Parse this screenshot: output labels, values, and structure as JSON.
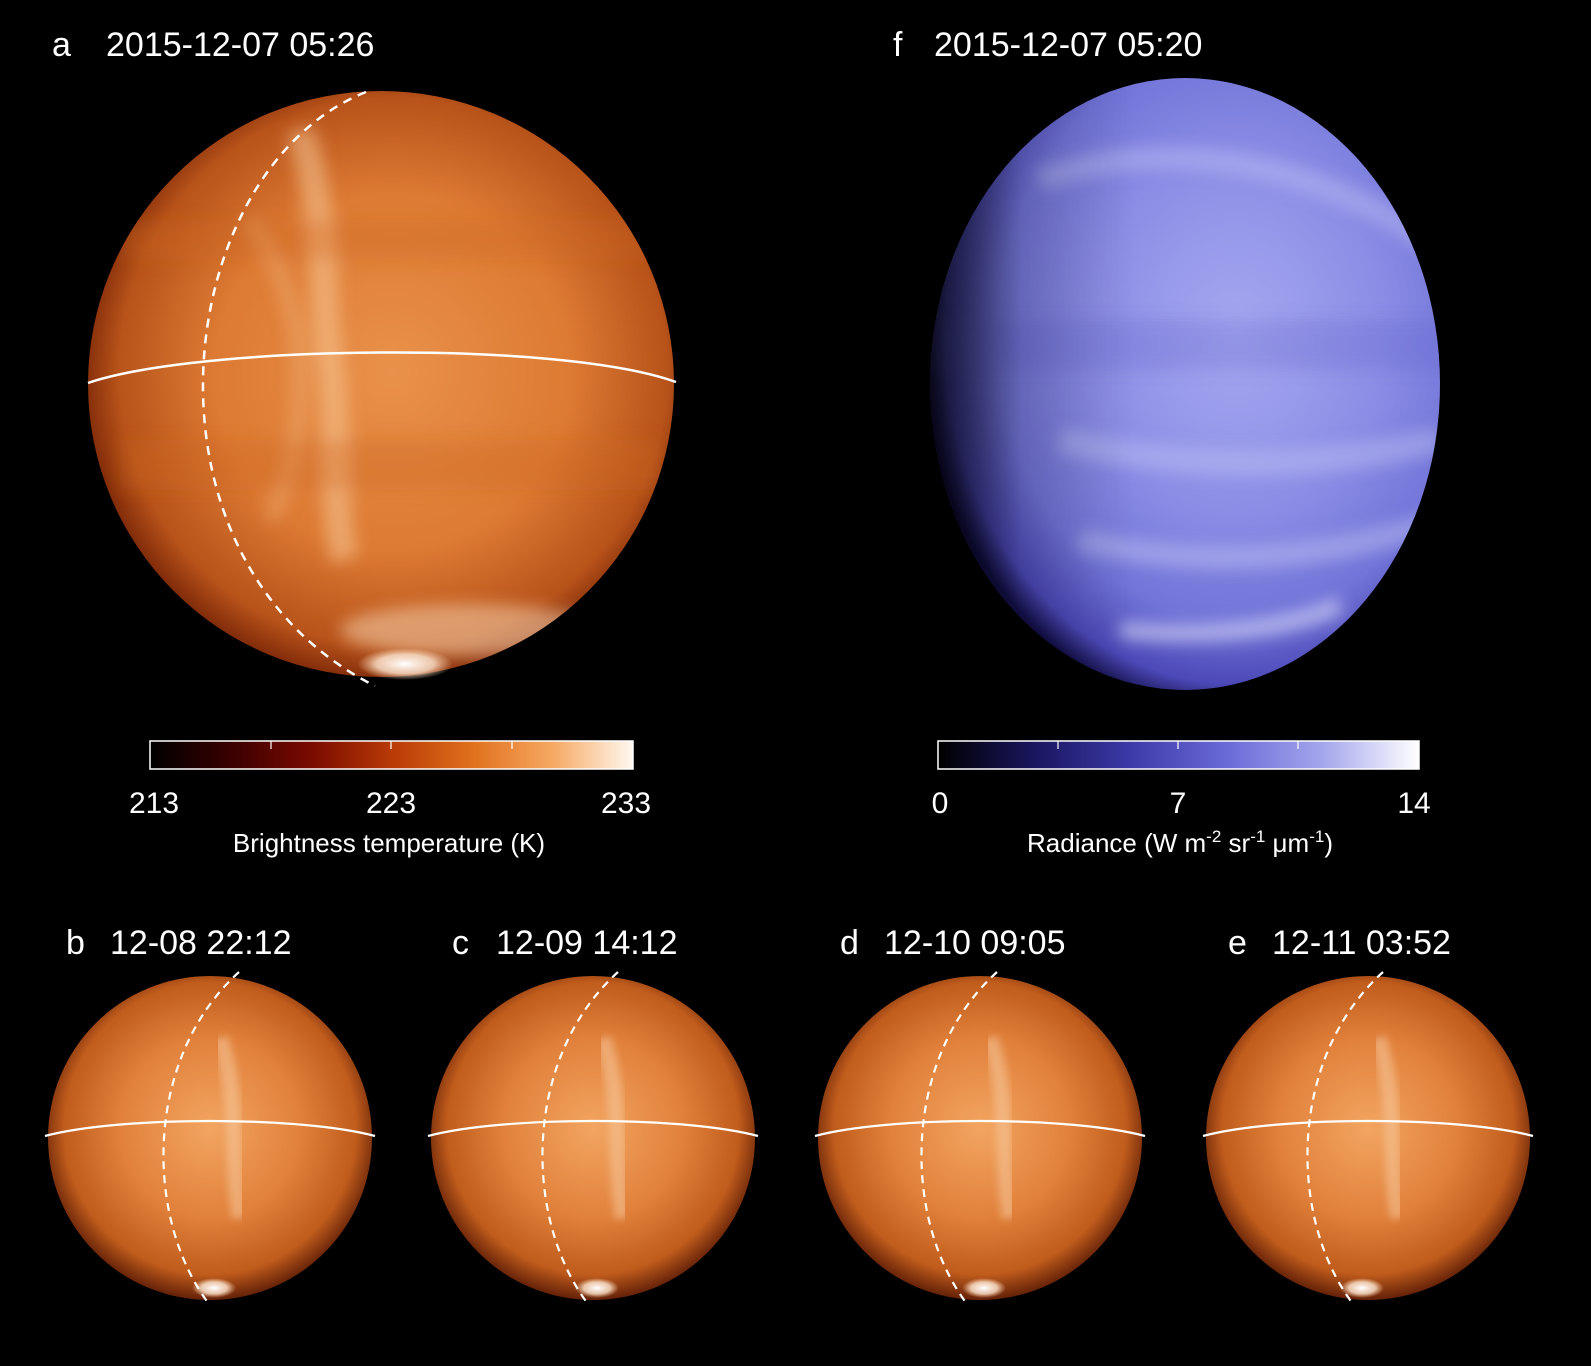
{
  "panels": {
    "a": {
      "letter": "a",
      "timestamp": "2015-12-07 05:26"
    },
    "b": {
      "letter": "b",
      "timestamp": "12-08 22:12"
    },
    "c": {
      "letter": "c",
      "timestamp": "12-09 14:12"
    },
    "d": {
      "letter": "d",
      "timestamp": "12-10 09:05"
    },
    "e": {
      "letter": "e",
      "timestamp": "12-11 03:52"
    },
    "f": {
      "letter": "f",
      "timestamp": "2015-12-07 05:20"
    }
  },
  "colorbars": {
    "temperature": {
      "ticks": [
        "213",
        "223",
        "233"
      ],
      "min": 213,
      "max": 233,
      "title": "Brightness temperature (K)",
      "colors": [
        "#000000",
        "#3a0000",
        "#7a0a00",
        "#b83a06",
        "#e0701c",
        "#f6a862",
        "#fff8f0"
      ]
    },
    "radiance": {
      "ticks": [
        "0",
        "7",
        "14"
      ],
      "min": 0,
      "max": 14,
      "title_main": "Radiance (W m",
      "sup1": "-2",
      "mid1": " sr",
      "sup2": "-1",
      "mid2": " μm",
      "sup3": "-1",
      "title_end": ")",
      "colors": [
        "#000000",
        "#1a1660",
        "#3c3aa8",
        "#6a6ad8",
        "#a4a6ec",
        "#ffffff"
      ]
    }
  },
  "colors": {
    "background": "#000000",
    "overlay_lines": "#ffffff",
    "planet_warm": "#dd7a33",
    "planet_cool": "#7c7fe0"
  }
}
